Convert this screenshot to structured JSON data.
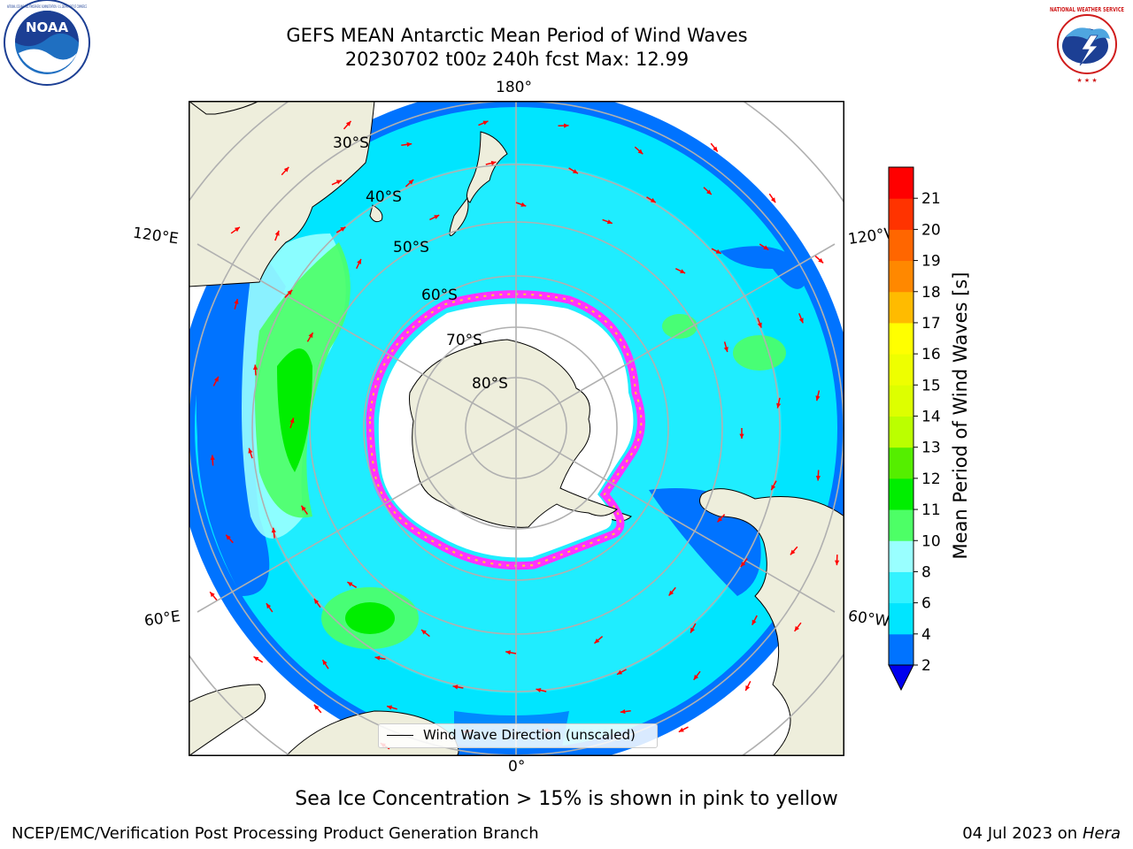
{
  "header": {
    "title_line1": "GEFS MEAN Antarctic Mean Period of Wind Waves",
    "title_line2": "20230702 t00z 240h fcst   Max: 12.99"
  },
  "logos": {
    "left": "noaa-logo",
    "right": "national-weather-service-logo",
    "noaa_text": "NOAA",
    "noaa_ring_text": "NATIONAL OCEANIC AND ATMOSPHERIC ADMINISTRATION · U.S. DEPARTMENT OF COMMERCE",
    "nws_ring_text": "NATIONAL WEATHER SERVICE"
  },
  "map": {
    "longitude_labels": {
      "top": "180°",
      "bottom": "0°",
      "upper_left": "120°E",
      "upper_right": "120°W",
      "lower_left": "60°E",
      "lower_right": "60°W"
    },
    "latitude_labels": [
      "30°S",
      "40°S",
      "50°S",
      "60°S",
      "70°S",
      "80°S"
    ],
    "legend_label": "Wind Wave Direction (unscaled)",
    "colors": {
      "land": "#eeeedc",
      "ice_free_ocean_unfilled": "#ffffff",
      "sea_ice_low": "#ff33ff",
      "sea_ice_high": "#ffcc33",
      "arrow": "#ff0000",
      "gridline": "#b0b0b0"
    }
  },
  "colorbar": {
    "title": "Mean Period of Wind Waves [s]",
    "tick_labels": [
      "2",
      "4",
      "6",
      "8",
      "10",
      "11",
      "12",
      "13",
      "14",
      "15",
      "16",
      "17",
      "18",
      "19",
      "20",
      "21"
    ],
    "bins": [
      {
        "from": 2,
        "to": 4,
        "color": "#0073ff"
      },
      {
        "from": 4,
        "to": 6,
        "color": "#00e5ff"
      },
      {
        "from": 6,
        "to": 8,
        "color": "#33f2ff"
      },
      {
        "from": 8,
        "to": 9,
        "color": "#99ffff"
      },
      {
        "from": 9,
        "to": 10,
        "color": "#4dff66"
      },
      {
        "from": 10,
        "to": 11,
        "color": "#00ee00"
      },
      {
        "from": 11,
        "to": 12,
        "color": "#55ee00"
      },
      {
        "from": 12,
        "to": 13,
        "color": "#bbff00"
      },
      {
        "from": 13,
        "to": 14,
        "color": "#ddff00"
      },
      {
        "from": 14,
        "to": 15,
        "color": "#eeff00"
      },
      {
        "from": 15,
        "to": 16,
        "color": "#ffff00"
      },
      {
        "from": 16,
        "to": 17,
        "color": "#ffbb00"
      },
      {
        "from": 17,
        "to": 18,
        "color": "#ff8800"
      },
      {
        "from": 18,
        "to": 19,
        "color": "#ff6600"
      },
      {
        "from": 19,
        "to": 20,
        "color": "#ff3300"
      },
      {
        "from": 20,
        "to": 21,
        "color": "#ff0000"
      }
    ],
    "under_color": "#0000ee"
  },
  "caption": "Sea Ice Concentration > 15% is shown in pink to yellow",
  "footer": {
    "left": "NCEP/EMC/Verification Post Processing Product Generation Branch",
    "right_prefix": "04 Jul 2023 on ",
    "right_italic": "Hera"
  }
}
